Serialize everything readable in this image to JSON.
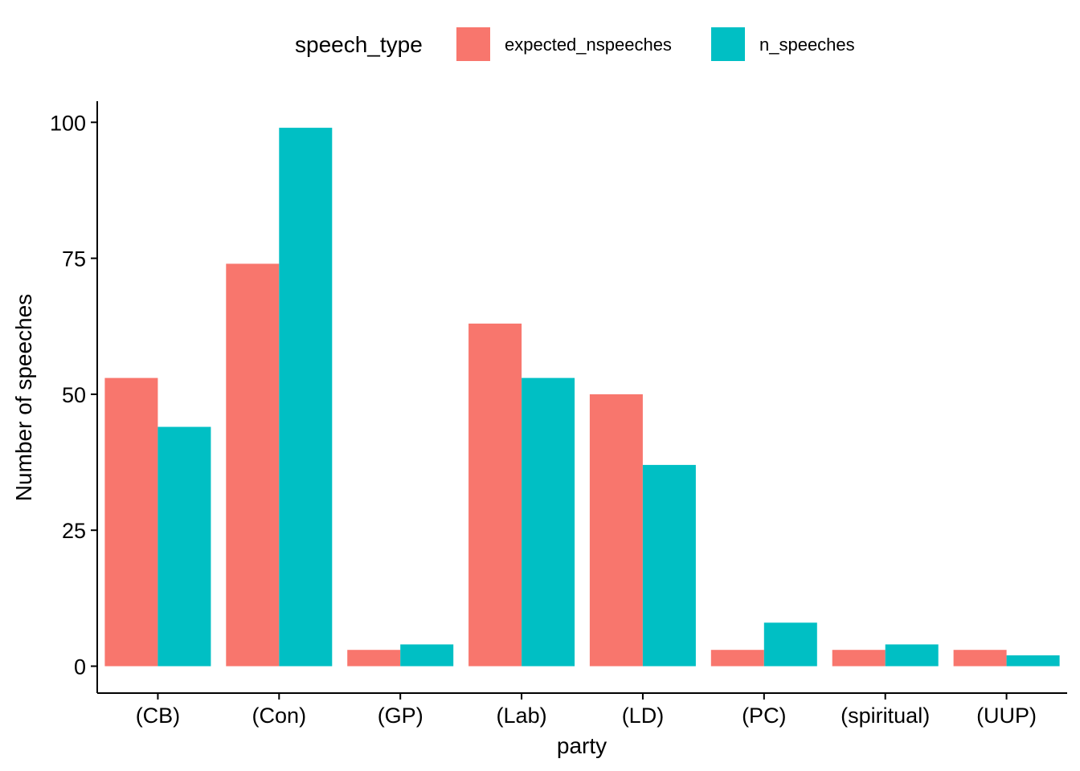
{
  "chart_data": {
    "type": "bar",
    "categories": [
      "(CB)",
      "(Con)",
      "(GP)",
      "(Lab)",
      "(LD)",
      "(PC)",
      "(spiritual)",
      "(UUP)"
    ],
    "series": [
      {
        "name": "expected_nspeeches",
        "color": "#F8766D",
        "values": [
          53,
          74,
          3,
          63,
          50,
          3,
          3,
          3
        ]
      },
      {
        "name": "n_speeches",
        "color": "#00BFC4",
        "values": [
          44,
          99,
          4,
          53,
          37,
          8,
          4,
          2
        ]
      }
    ],
    "xlabel": "party",
    "ylabel": "Number of speeches",
    "ylim": [
      0,
      105
    ],
    "yticks": [
      0,
      25,
      50,
      75,
      100
    ],
    "legend": {
      "title": "speech_type",
      "position": "top"
    },
    "grid": false
  }
}
